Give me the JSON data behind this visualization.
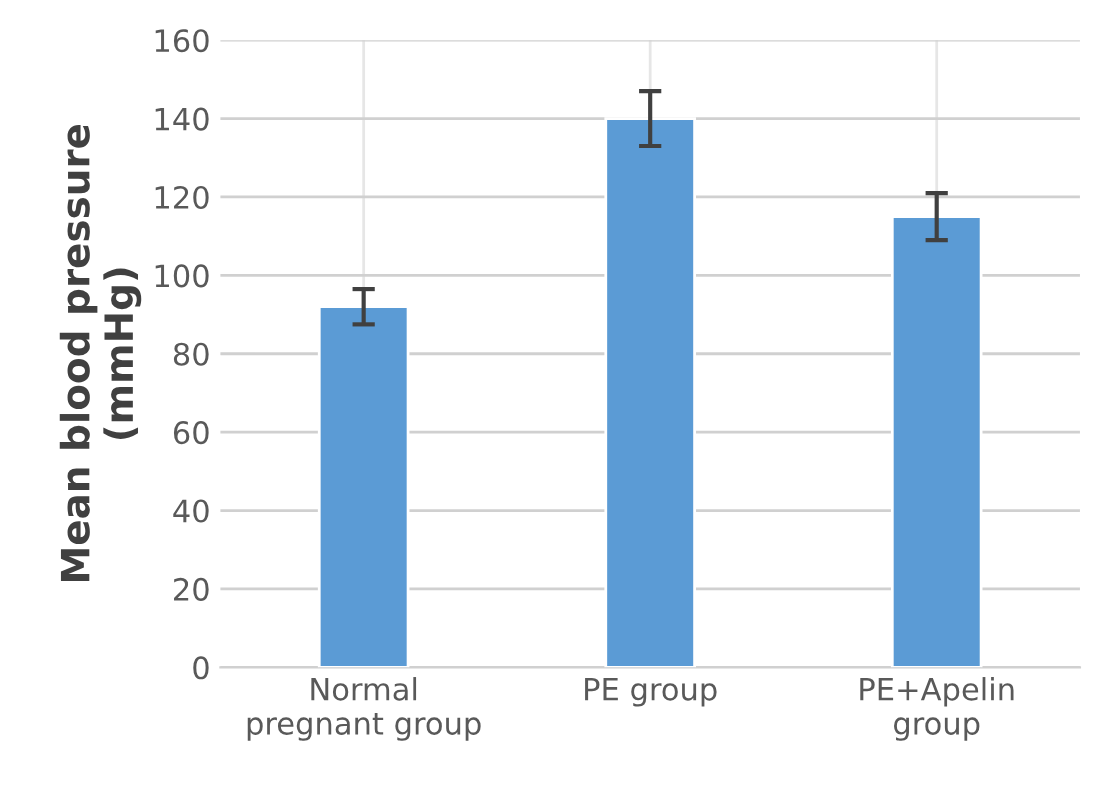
{
  "chart_data": {
    "type": "bar",
    "ylabel": "Mean blood pressure\n(mmHg)",
    "categories": [
      "Normal\npregnant group",
      "PE group",
      "PE+Apelin\ngroup"
    ],
    "values": [
      92,
      140,
      115
    ],
    "errors": [
      4.5,
      7,
      6
    ],
    "color": "#5b9bd5",
    "ylim": [
      0,
      160
    ],
    "yticks": [
      0,
      20,
      40,
      60,
      80,
      100,
      120,
      140,
      160
    ],
    "grid": true
  }
}
